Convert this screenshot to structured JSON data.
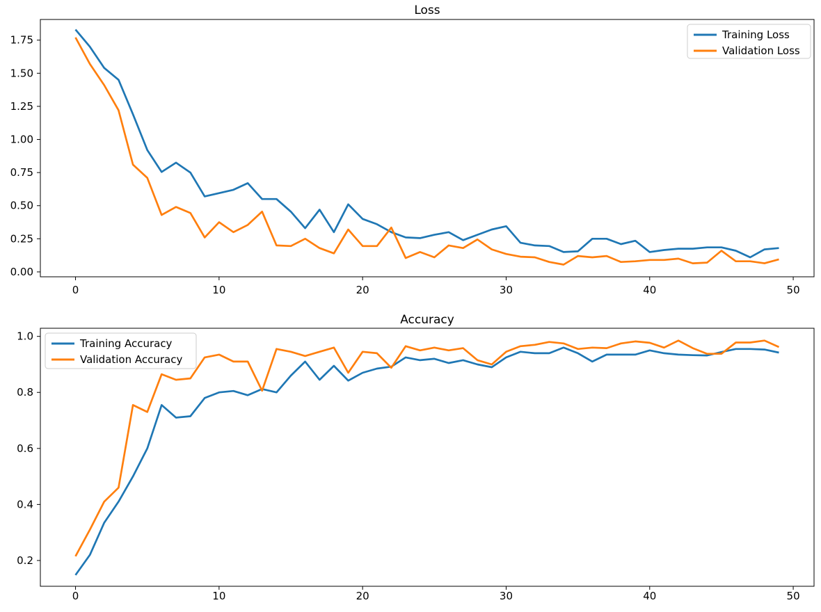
{
  "figure": {
    "background": "#ffffff"
  },
  "colors": {
    "training": "#1f77b4",
    "validation": "#ff7f0e",
    "spine": "#000000",
    "legend_border": "#cccccc",
    "legend_bg": "rgba(255,255,255,0.85)"
  },
  "chart_data": [
    {
      "type": "line",
      "title": "Loss",
      "x_label": "",
      "y_label": "",
      "xlim": [
        -2.45,
        51.45
      ],
      "ylim": [
        -0.037,
        1.906
      ],
      "x_ticks": [
        0,
        10,
        20,
        30,
        40,
        50
      ],
      "x_tick_labels": [
        "0",
        "10",
        "20",
        "30",
        "40",
        "50"
      ],
      "y_ticks": [
        0.0,
        0.25,
        0.5,
        0.75,
        1.0,
        1.25,
        1.5,
        1.75
      ],
      "y_tick_labels": [
        "0.00",
        "0.25",
        "0.50",
        "0.75",
        "1.00",
        "1.25",
        "1.50",
        "1.75"
      ],
      "legend_position": "top-right",
      "grid": false,
      "x": [
        0,
        1,
        2,
        3,
        4,
        5,
        6,
        7,
        8,
        9,
        10,
        11,
        12,
        13,
        14,
        15,
        16,
        17,
        18,
        19,
        20,
        21,
        22,
        23,
        24,
        25,
        26,
        27,
        28,
        29,
        30,
        31,
        32,
        33,
        34,
        35,
        36,
        37,
        38,
        39,
        40,
        41,
        42,
        43,
        44,
        45,
        46,
        47,
        48,
        49
      ],
      "series": [
        {
          "name": "Training Loss",
          "color_key": "training",
          "values": [
            1.83,
            1.7,
            1.54,
            1.45,
            1.19,
            0.92,
            0.755,
            0.825,
            0.75,
            0.57,
            0.595,
            0.62,
            0.67,
            0.55,
            0.55,
            0.455,
            0.33,
            0.47,
            0.3,
            0.51,
            0.4,
            0.36,
            0.3,
            0.26,
            0.255,
            0.28,
            0.3,
            0.24,
            0.28,
            0.32,
            0.345,
            0.22,
            0.2,
            0.195,
            0.15,
            0.155,
            0.25,
            0.25,
            0.21,
            0.235,
            0.15,
            0.165,
            0.175,
            0.175,
            0.185,
            0.185,
            0.16,
            0.11,
            0.17,
            0.18
          ]
        },
        {
          "name": "Validation Loss",
          "color_key": "validation",
          "values": [
            1.77,
            1.57,
            1.41,
            1.22,
            0.81,
            0.71,
            0.43,
            0.49,
            0.445,
            0.26,
            0.375,
            0.3,
            0.355,
            0.455,
            0.2,
            0.195,
            0.25,
            0.18,
            0.14,
            0.32,
            0.195,
            0.195,
            0.335,
            0.105,
            0.15,
            0.11,
            0.2,
            0.18,
            0.245,
            0.17,
            0.135,
            0.115,
            0.11,
            0.075,
            0.055,
            0.12,
            0.11,
            0.12,
            0.075,
            0.08,
            0.09,
            0.09,
            0.1,
            0.065,
            0.07,
            0.16,
            0.08,
            0.08,
            0.065,
            0.095
          ]
        }
      ]
    },
    {
      "type": "line",
      "title": "Accuracy",
      "x_label": "",
      "y_label": "",
      "xlim": [
        -2.45,
        51.45
      ],
      "ylim": [
        0.108,
        1.029
      ],
      "x_ticks": [
        0,
        10,
        20,
        30,
        40,
        50
      ],
      "x_tick_labels": [
        "0",
        "10",
        "20",
        "30",
        "40",
        "50"
      ],
      "y_ticks": [
        0.2,
        0.4,
        0.6,
        0.8,
        1.0
      ],
      "y_tick_labels": [
        "0.2",
        "0.4",
        "0.6",
        "0.8",
        "1.0"
      ],
      "legend_position": "top-left",
      "grid": false,
      "x": [
        0,
        1,
        2,
        3,
        4,
        5,
        6,
        7,
        8,
        9,
        10,
        11,
        12,
        13,
        14,
        15,
        16,
        17,
        18,
        19,
        20,
        21,
        22,
        23,
        24,
        25,
        26,
        27,
        28,
        29,
        30,
        31,
        32,
        33,
        34,
        35,
        36,
        37,
        38,
        39,
        40,
        41,
        42,
        43,
        44,
        45,
        46,
        47,
        48,
        49
      ],
      "series": [
        {
          "name": "Training Accuracy",
          "color_key": "training",
          "values": [
            0.148,
            0.22,
            0.335,
            0.41,
            0.5,
            0.6,
            0.755,
            0.71,
            0.715,
            0.78,
            0.8,
            0.805,
            0.79,
            0.812,
            0.8,
            0.86,
            0.91,
            0.845,
            0.895,
            0.842,
            0.87,
            0.885,
            0.892,
            0.925,
            0.915,
            0.92,
            0.905,
            0.915,
            0.9,
            0.89,
            0.925,
            0.945,
            0.94,
            0.94,
            0.96,
            0.94,
            0.91,
            0.935,
            0.935,
            0.935,
            0.95,
            0.94,
            0.935,
            0.933,
            0.932,
            0.944,
            0.955,
            0.955,
            0.953,
            0.942
          ]
        },
        {
          "name": "Validation Accuracy",
          "color_key": "validation",
          "values": [
            0.215,
            0.31,
            0.41,
            0.46,
            0.755,
            0.73,
            0.865,
            0.845,
            0.85,
            0.925,
            0.935,
            0.91,
            0.91,
            0.806,
            0.955,
            0.945,
            0.93,
            0.945,
            0.96,
            0.87,
            0.945,
            0.94,
            0.888,
            0.965,
            0.95,
            0.96,
            0.95,
            0.958,
            0.915,
            0.9,
            0.945,
            0.965,
            0.97,
            0.98,
            0.975,
            0.955,
            0.96,
            0.958,
            0.975,
            0.982,
            0.977,
            0.96,
            0.985,
            0.958,
            0.938,
            0.938,
            0.978,
            0.978,
            0.985,
            0.962
          ]
        }
      ]
    }
  ]
}
